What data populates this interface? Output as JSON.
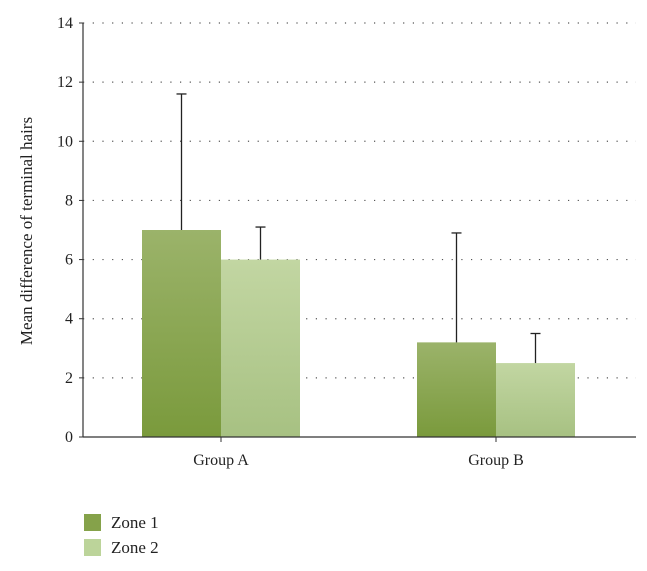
{
  "chart_data": {
    "type": "bar",
    "categories": [
      "Group A",
      "Group B"
    ],
    "series": [
      {
        "name": "Zone 1",
        "values": [
          7.0,
          3.2
        ],
        "error_upper": [
          11.6,
          6.9
        ],
        "color_top": "#9bb36a",
        "color_bottom": "#7a9a3c"
      },
      {
        "name": "Zone 2",
        "values": [
          6.0,
          2.5
        ],
        "error_upper": [
          7.1,
          3.5
        ],
        "color_top": "#c2d6a2",
        "color_bottom": "#a7c182"
      }
    ],
    "title": "",
    "xlabel": "",
    "ylabel": "Mean difference of terminal hairs",
    "ylim": [
      0,
      14
    ],
    "yticks": [
      "0",
      "2",
      "4",
      "6",
      "8",
      "10",
      "12",
      "14"
    ],
    "grid": "dotted horizontal",
    "legend_position": "bottom-left"
  }
}
